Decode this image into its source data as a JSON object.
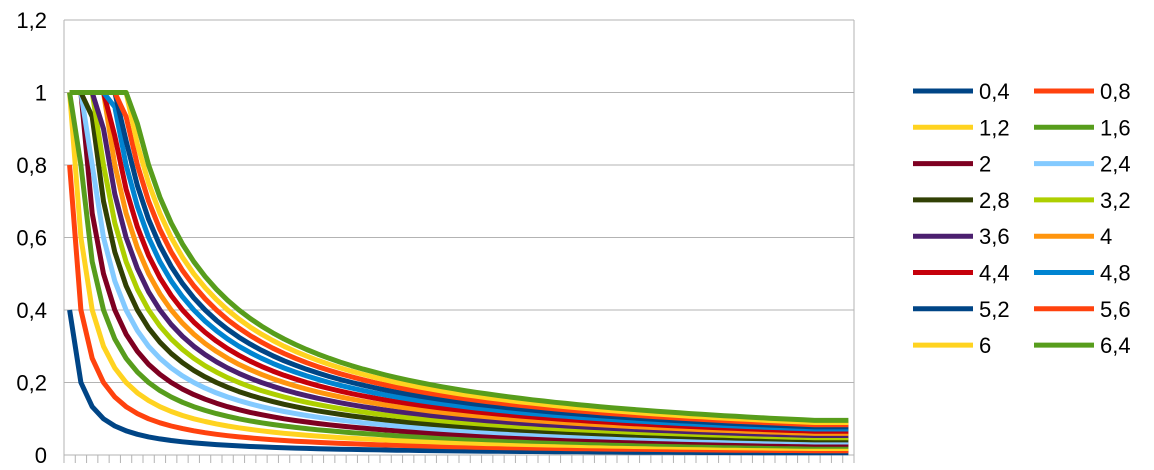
{
  "chart_data": {
    "type": "line",
    "title": "",
    "xlabel": "",
    "ylabel": "",
    "ylim": [
      0,
      1.2
    ],
    "yticks": [
      "0",
      "0,2",
      "0,4",
      "0,6",
      "0,8",
      "1",
      "1,2"
    ],
    "ytick_values": [
      0,
      0.2,
      0.4,
      0.6,
      0.8,
      1.0,
      1.2
    ],
    "grid": "horizontal",
    "legend_position": "right",
    "x_categories": 70,
    "x_tick_labels_shown": false,
    "curve": "y = min(1, s / x), x = category index 1..70, held flat from index 67",
    "series": [
      {
        "name": "0,4",
        "s": 0.4,
        "color": "#004586"
      },
      {
        "name": "0,8",
        "s": 0.8,
        "color": "#ff420e"
      },
      {
        "name": "1,2",
        "s": 1.2,
        "color": "#ffd320"
      },
      {
        "name": "1,6",
        "s": 1.6,
        "color": "#579d1c"
      },
      {
        "name": "2",
        "s": 2.0,
        "color": "#7e0021"
      },
      {
        "name": "2,4",
        "s": 2.4,
        "color": "#83caff"
      },
      {
        "name": "2,8",
        "s": 2.8,
        "color": "#314004"
      },
      {
        "name": "3,2",
        "s": 3.2,
        "color": "#aecf00"
      },
      {
        "name": "3,6",
        "s": 3.6,
        "color": "#4b1f6f"
      },
      {
        "name": "4",
        "s": 4.0,
        "color": "#ff950e"
      },
      {
        "name": "4,4",
        "s": 4.4,
        "color": "#c5000b"
      },
      {
        "name": "4,8",
        "s": 4.8,
        "color": "#0084d1"
      },
      {
        "name": "5,2",
        "s": 5.2,
        "color": "#004586"
      },
      {
        "name": "5,6",
        "s": 5.6,
        "color": "#ff420e"
      },
      {
        "name": "6",
        "s": 6.0,
        "color": "#ffd320"
      },
      {
        "name": "6,4",
        "s": 6.4,
        "color": "#579d1c"
      }
    ]
  }
}
